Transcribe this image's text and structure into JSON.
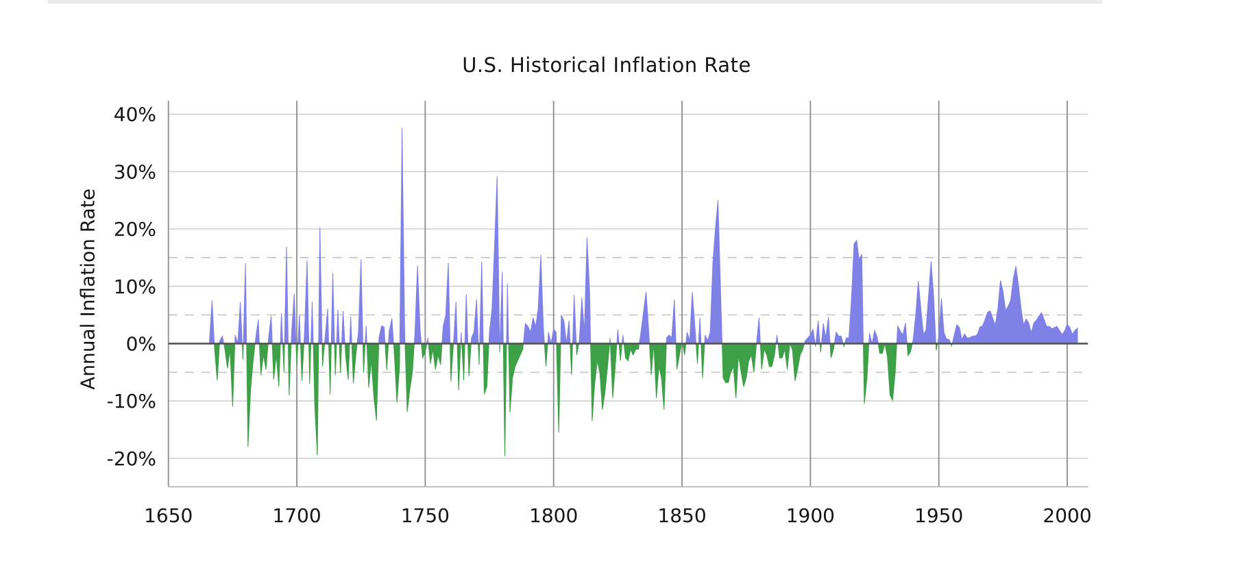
{
  "window": {
    "top_strip_present": true,
    "top_strip_color": "#ebebeb"
  },
  "chart_data": {
    "type": "area",
    "title": "U.S. Historical Inflation Rate",
    "ylabel": "Annual Inflation Rate",
    "xlabel": "",
    "legend": "none",
    "grid": "on",
    "xlim": [
      1650,
      2008
    ],
    "ylim_pct": [
      -25,
      42.5
    ],
    "positive_fill": "#7f81e6",
    "negative_fill": "#3da046",
    "zero_line_color": "#4f4f4f",
    "vertical_grid_color": "#8c8c8c",
    "horizontal_grid_color": "#d5d5d5",
    "dashed_grid_color": "#c8c8c8",
    "solid_gridlines_pct": [
      40,
      30,
      20,
      10,
      -10,
      -20
    ],
    "dashed_gridlines_pct": [
      15,
      5,
      -5
    ],
    "yticks": [
      {
        "value": 40,
        "label": "40%"
      },
      {
        "value": 30,
        "label": "30%"
      },
      {
        "value": 20,
        "label": "20%"
      },
      {
        "value": 10,
        "label": "10%"
      },
      {
        "value": 0,
        "label": "0%"
      },
      {
        "value": -10,
        "label": "-10%"
      },
      {
        "value": -20,
        "label": "-20%"
      }
    ],
    "xticks": [
      {
        "value": 1650,
        "label": "1650"
      },
      {
        "value": 1700,
        "label": "1700"
      },
      {
        "value": 1750,
        "label": "1750"
      },
      {
        "value": 1800,
        "label": "1800"
      },
      {
        "value": 1850,
        "label": "1850"
      },
      {
        "value": 1900,
        "label": "1900"
      },
      {
        "value": 1950,
        "label": "1950"
      },
      {
        "value": 2000,
        "label": "2000"
      }
    ],
    "series": [
      {
        "name": "annual-inflation-rate",
        "unit": "percent",
        "start_year": 1666,
        "end_year": 2004,
        "values": [
          0.5,
          7.5,
          -1.0,
          -6.4,
          0.5,
          1.3,
          -1.0,
          -4.3,
          -1.0,
          -11.0,
          1.5,
          0.0,
          7.2,
          -2.8,
          14.0,
          -18.0,
          -8.0,
          -3.0,
          1.0,
          4.2,
          -5.5,
          -2.0,
          -4.5,
          1.0,
          4.8,
          -6.3,
          -2.0,
          -7.5,
          5.3,
          -5.0,
          16.9,
          -9.0,
          2.0,
          8.7,
          -4.0,
          5.1,
          -6.5,
          2.0,
          14.5,
          -7.0,
          7.3,
          -11.0,
          -19.5,
          20.3,
          -4.0,
          1.0,
          6.1,
          -8.9,
          12.3,
          -5.5,
          5.9,
          -5.1,
          5.7,
          -2.0,
          -6.3,
          4.7,
          -6.9,
          -2.0,
          2.0,
          14.7,
          -5.1,
          3.1,
          -7.7,
          -3.0,
          -9.2,
          -13.4,
          1.0,
          3.1,
          2.9,
          -4.6,
          2.2,
          4.4,
          -2.0,
          -10.3,
          -4.0,
          37.6,
          2.0,
          -11.9,
          -8.0,
          -5.1,
          2.0,
          13.6,
          2.5,
          -2.5,
          -1.5,
          1.0,
          -3.5,
          -1.0,
          -4.5,
          -2.0,
          -3.7,
          3.0,
          5.0,
          14.1,
          -6.6,
          0.0,
          7.3,
          -8.1,
          2.0,
          -6.4,
          8.6,
          -5.7,
          1.0,
          2.0,
          7.7,
          -3.7,
          14.3,
          -8.8,
          -7.5,
          2.0,
          6.0,
          17.0,
          29.2,
          -1.5,
          12.5,
          -19.6,
          10.5,
          -12.0,
          -6.0,
          -4.0,
          -3.0,
          -2.0,
          -1.0,
          3.5,
          3.0,
          2.0,
          4.5,
          3.0,
          6.0,
          15.5,
          3.0,
          -4.0,
          2.0,
          0.0,
          2.5,
          2.0,
          -15.5,
          5.0,
          4.0,
          0.0,
          4.0,
          -5.5,
          8.5,
          -2.0,
          0.5,
          8.0,
          2.0,
          18.5,
          9.5,
          -13.5,
          -7.0,
          -3.0,
          -5.0,
          -11.5,
          -8.5,
          -4.0,
          1.0,
          -9.5,
          -4.0,
          2.5,
          -3.0,
          1.5,
          -2.5,
          -3.0,
          -1.0,
          -2.0,
          -1.0,
          -1.0,
          2.0,
          5.5,
          9.0,
          2.5,
          -5.5,
          0.0,
          -9.5,
          -4.0,
          -6.0,
          -11.5,
          1.0,
          1.5,
          1.0,
          7.7,
          -4.5,
          -2.0,
          0.5,
          -2.0,
          2.0,
          0.5,
          9.0,
          3.0,
          -3.5,
          4.5,
          -6.0,
          1.5,
          0.5,
          2.0,
          14.0,
          20.0,
          25.0,
          9.5,
          -6.0,
          -6.8,
          -6.8,
          -5.0,
          -4.0,
          -9.5,
          -2.0,
          -5.0,
          -7.5,
          -6.0,
          -3.0,
          -2.0,
          -5.0,
          0.0,
          4.5,
          -4.5,
          -1.0,
          -2.0,
          -4.0,
          -4.0,
          -2.0,
          1.5,
          -2.5,
          -2.5,
          -1.0,
          -4.5,
          0.0,
          -1.0,
          -6.5,
          -4.5,
          -2.0,
          -1.0,
          0.5,
          1.0,
          1.5,
          2.5,
          -0.5,
          4.0,
          -1.5,
          3.5,
          1.0,
          4.6,
          -2.5,
          -1.0,
          2.0,
          1.3,
          1.3,
          -0.5,
          1.0,
          1.0,
          7.9,
          17.4,
          18.0,
          14.6,
          15.6,
          -10.5,
          -6.1,
          1.8,
          0.0,
          2.3,
          1.1,
          -1.7,
          -1.7,
          0.0,
          -2.3,
          -9.0,
          -9.9,
          -5.1,
          3.1,
          2.2,
          1.5,
          3.6,
          -2.1,
          -1.4,
          0.7,
          5.0,
          10.9,
          6.1,
          1.7,
          2.3,
          8.3,
          14.4,
          8.1,
          -1.2,
          1.3,
          7.9,
          1.9,
          0.8,
          0.7,
          -0.4,
          1.5,
          3.3,
          2.8,
          0.7,
          1.7,
          1.0,
          1.0,
          1.3,
          1.3,
          1.6,
          2.9,
          3.1,
          4.2,
          5.5,
          5.7,
          4.4,
          3.2,
          6.2,
          11.0,
          9.1,
          5.8,
          6.5,
          7.6,
          11.3,
          13.5,
          10.3,
          6.2,
          3.2,
          4.3,
          3.6,
          1.9,
          3.6,
          4.1,
          4.8,
          5.4,
          4.2,
          3.0,
          3.0,
          2.6,
          2.8,
          3.0,
          2.3,
          1.6,
          2.2,
          3.4,
          2.8,
          1.6,
          2.3,
          2.7
        ]
      }
    ]
  }
}
